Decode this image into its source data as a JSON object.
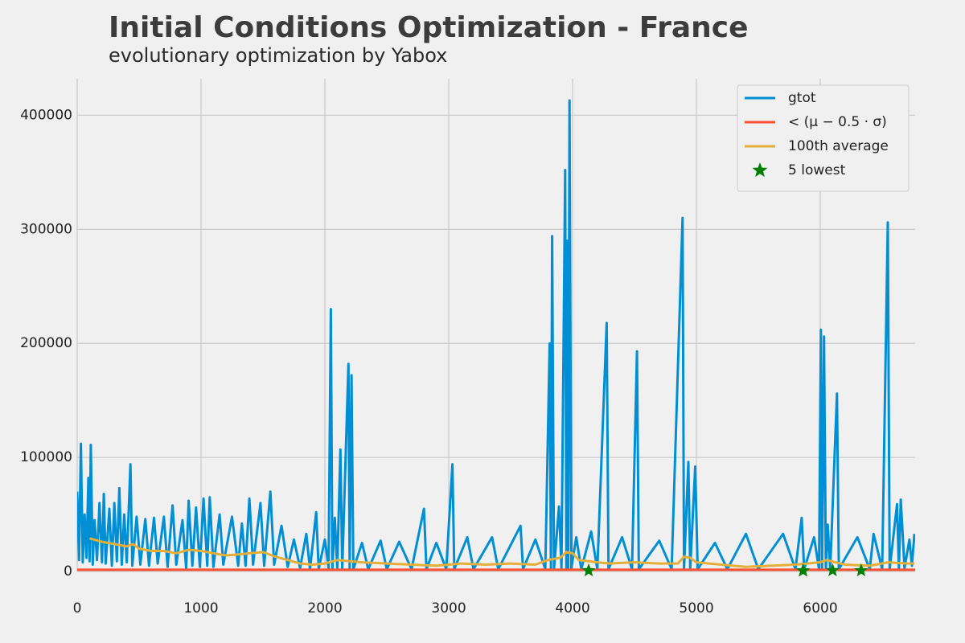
{
  "chart_data": {
    "type": "line",
    "title": "Initial Conditions Optimization - France",
    "subtitle": "evolutionary optimization by Yabox",
    "xlim": [
      0,
      6766
    ],
    "ylim": [
      0,
      432000
    ],
    "xticks": [
      0,
      1000,
      2000,
      3000,
      4000,
      5000,
      6000
    ],
    "yticks": [
      0,
      100000,
      200000,
      300000,
      400000
    ],
    "grid": true,
    "legend": "upper right",
    "series": [
      {
        "name": "gtot",
        "color": "#008fd5",
        "kind": "line",
        "x": [
          0,
          15,
          30,
          45,
          60,
          75,
          90,
          100,
          110,
          125,
          140,
          160,
          180,
          200,
          215,
          230,
          260,
          280,
          300,
          320,
          340,
          360,
          380,
          400,
          430,
          445,
          480,
          510,
          550,
          580,
          620,
          650,
          700,
          730,
          770,
          800,
          850,
          880,
          900,
          930,
          960,
          990,
          1020,
          1050,
          1070,
          1100,
          1150,
          1180,
          1250,
          1300,
          1330,
          1360,
          1390,
          1420,
          1480,
          1510,
          1560,
          1590,
          1650,
          1700,
          1750,
          1800,
          1850,
          1880,
          1930,
          1950,
          2000,
          2030,
          2048,
          2060,
          2080,
          2100,
          2125,
          2140,
          2190,
          2200,
          2215,
          2230,
          2300,
          2350,
          2450,
          2500,
          2600,
          2700,
          2800,
          2820,
          2900,
          2980,
          3030,
          3045,
          3150,
          3200,
          3350,
          3400,
          3580,
          3600,
          3700,
          3780,
          3815,
          3825,
          3835,
          3850,
          3890,
          3910,
          3940,
          3950,
          3955,
          3965,
          3975,
          3990,
          4030,
          4070,
          4150,
          4200,
          4275,
          4290,
          4400,
          4480,
          4520,
          4535,
          4700,
          4800,
          4888,
          4900,
          4935,
          4950,
          4990,
          5010,
          5150,
          5250,
          5400,
          5500,
          5700,
          5800,
          5850,
          5870,
          5950,
          5990,
          6005,
          6015,
          6030,
          6045,
          6060,
          6080,
          6135,
          6150,
          6300,
          6400,
          6430,
          6500,
          6545,
          6560,
          6620,
          6635,
          6650,
          6680,
          6720,
          6740,
          6760
        ],
        "values": [
          70000,
          10000,
          112000,
          8000,
          50000,
          12000,
          82000,
          9000,
          111000,
          6000,
          45000,
          10000,
          60000,
          8000,
          68000,
          7000,
          55000,
          5000,
          60000,
          9000,
          73000,
          6000,
          50000,
          8000,
          94000,
          5000,
          48000,
          6000,
          46000,
          5000,
          47000,
          7000,
          48000,
          4000,
          58000,
          6000,
          45000,
          3000,
          62000,
          5000,
          56000,
          4000,
          64000,
          5000,
          65000,
          4000,
          50000,
          6000,
          48000,
          5000,
          42000,
          5000,
          64000,
          6000,
          60000,
          5000,
          70000,
          6000,
          40000,
          4000,
          28000,
          3000,
          33000,
          2000,
          52000,
          2000,
          28000,
          3000,
          230000,
          2000,
          47000,
          3000,
          107000,
          2000,
          182000,
          2000,
          172000,
          2000,
          25000,
          2000,
          27000,
          2000,
          26000,
          2000,
          55000,
          2000,
          25000,
          2000,
          94000,
          2000,
          30000,
          2000,
          30000,
          2000,
          40000,
          2000,
          28000,
          2000,
          200000,
          2000,
          294000,
          2000,
          57000,
          3000,
          352000,
          2000,
          290000,
          3000,
          413000,
          3000,
          30000,
          2000,
          35000,
          2000,
          218000,
          2000,
          30000,
          2000,
          193000,
          2000,
          27000,
          2000,
          310000,
          2000,
          96000,
          2000,
          92000,
          2000,
          25000,
          2000,
          33000,
          2000,
          33000,
          2000,
          47000,
          2000,
          30000,
          2000,
          212000,
          2000,
          206000,
          2000,
          41000,
          2000,
          156000,
          2000,
          30000,
          2000,
          33000,
          2000,
          306000,
          2000,
          59000,
          2000,
          63000,
          3000,
          28000,
          5000,
          33000
        ]
      },
      {
        "name": "< (μ − 0.5 · σ)",
        "color": "#fc4f30",
        "kind": "line",
        "x": [
          0,
          6766
        ],
        "values": [
          1500,
          1500
        ]
      },
      {
        "name": "100th average",
        "color": "#e5ae38",
        "kind": "line",
        "x": [
          100,
          200,
          300,
          400,
          450,
          500,
          600,
          700,
          800,
          900,
          1000,
          1100,
          1200,
          1300,
          1400,
          1500,
          1600,
          1700,
          1800,
          1900,
          2000,
          2100,
          2200,
          2300,
          2500,
          2700,
          2900,
          3100,
          3300,
          3500,
          3700,
          3800,
          3900,
          3950,
          4000,
          4050,
          4200,
          4300,
          4500,
          4700,
          4850,
          4900,
          4950,
          5000,
          5200,
          5400,
          5600,
          5800,
          6000,
          6050,
          6200,
          6400,
          6550,
          6700,
          6760
        ],
        "values": [
          29000,
          26000,
          24000,
          22000,
          24000,
          20000,
          18000,
          18000,
          16000,
          19000,
          18000,
          16000,
          14000,
          15000,
          16000,
          17000,
          13000,
          10000,
          7000,
          6000,
          7000,
          10000,
          9000,
          8000,
          7000,
          6000,
          5000,
          7000,
          6000,
          7000,
          6000,
          10000,
          12000,
          17000,
          16000,
          10000,
          8000,
          7000,
          8000,
          7000,
          7000,
          13000,
          12000,
          8000,
          6000,
          4000,
          5000,
          6000,
          8000,
          10000,
          6000,
          5000,
          8000,
          7000,
          7000
        ]
      },
      {
        "name": "5 lowest",
        "color": "green",
        "kind": "star",
        "x": [
          4130,
          5860,
          5862,
          6100,
          6330
        ],
        "values": [
          800,
          700,
          600,
          900,
          800
        ]
      }
    ]
  }
}
